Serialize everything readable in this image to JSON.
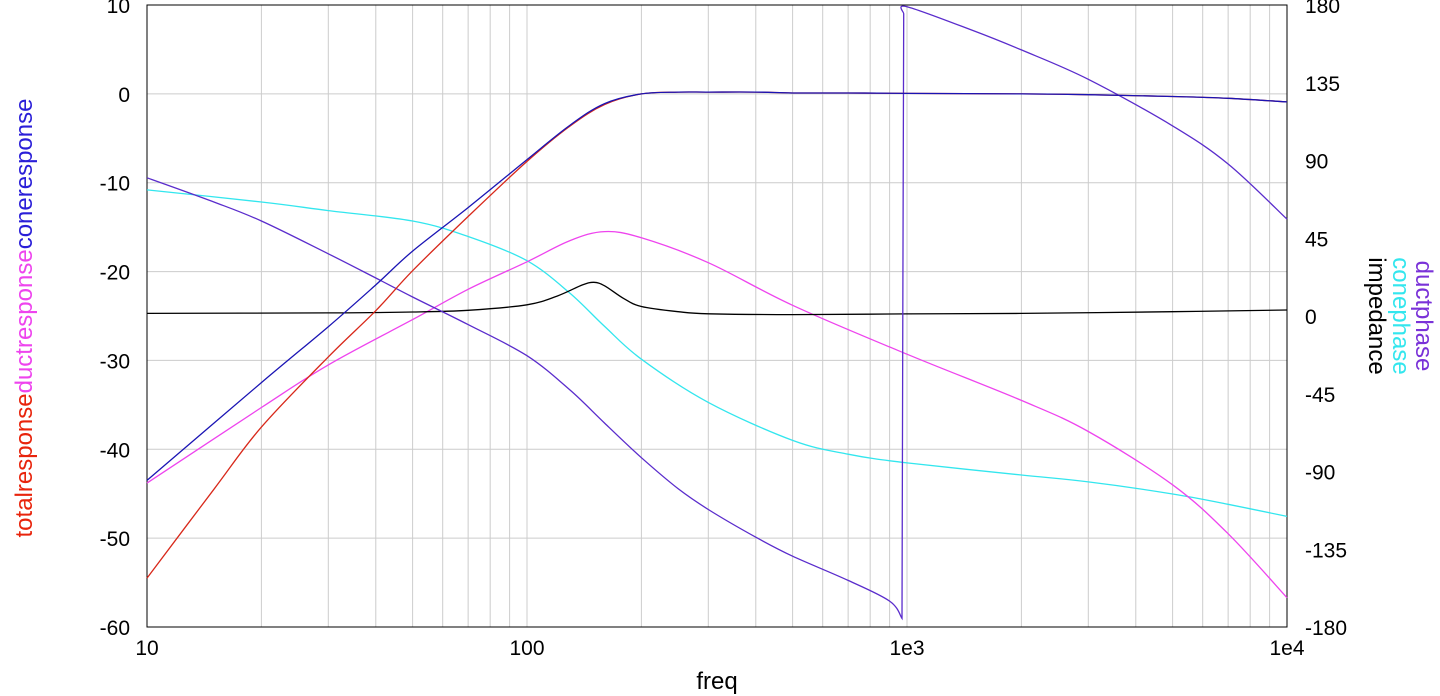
{
  "chart_data": {
    "type": "line",
    "x_scale": "log",
    "xlabel": "freq",
    "xlim": [
      10,
      10000
    ],
    "x_ticks": [
      {
        "value": 10,
        "label": "10"
      },
      {
        "value": 100,
        "label": "100"
      },
      {
        "value": 1000,
        "label": "1e3"
      },
      {
        "value": 10000,
        "label": "1e4"
      }
    ],
    "grid": true,
    "y_left": {
      "ylim": [
        -60,
        10
      ],
      "ticks": [
        {
          "value": 10,
          "label": "10"
        },
        {
          "value": 0,
          "label": "0"
        },
        {
          "value": -10,
          "label": "-10"
        },
        {
          "value": -20,
          "label": "-20"
        },
        {
          "value": -30,
          "label": "-30"
        },
        {
          "value": -40,
          "label": "-40"
        },
        {
          "value": -50,
          "label": "-50"
        },
        {
          "value": -60,
          "label": "-60"
        }
      ],
      "label_parts": [
        {
          "text": "totalresponse",
          "color": "#e8240c"
        },
        {
          "text": "ductresponse",
          "color": "#ee44ee"
        },
        {
          "text": "coneresponse",
          "color": "#2a1ed8"
        }
      ]
    },
    "y_right": {
      "ylim": [
        -180,
        180
      ],
      "ticks": [
        {
          "value": 180,
          "label": "180"
        },
        {
          "value": 135,
          "label": "135"
        },
        {
          "value": 90,
          "label": "90"
        },
        {
          "value": 45,
          "label": "45"
        },
        {
          "value": 0,
          "label": "0"
        },
        {
          "value": -45,
          "label": "-45"
        },
        {
          "value": -90,
          "label": "-90"
        },
        {
          "value": -135,
          "label": "-135"
        },
        {
          "value": -180,
          "label": "-180"
        }
      ],
      "label_lines": [
        {
          "text": "ductphase",
          "color": "#7a32d8"
        },
        {
          "text": "conephase",
          "color": "#33e6ee"
        },
        {
          "text": "impedance",
          "color": "#000000"
        }
      ]
    },
    "series": [
      {
        "name": "totalresponse",
        "axis": "left",
        "color": "#d8281a",
        "x": [
          10,
          15,
          20,
          30,
          40,
          50,
          70,
          100,
          130,
          160,
          200,
          250,
          300,
          400,
          500,
          700,
          1000,
          2000,
          3000,
          5000,
          7000,
          10000
        ],
        "y": [
          -54.5,
          -44.5,
          -37.5,
          -29.6,
          -24.4,
          -19.9,
          -13.8,
          -7.6,
          -3.6,
          -1.2,
          0,
          0.2,
          0.2,
          0.2,
          0.1,
          0.1,
          0.05,
          0,
          -0.1,
          -0.3,
          -0.5,
          -0.9
        ]
      },
      {
        "name": "ductresponse",
        "axis": "left",
        "color": "#ee44ee",
        "x": [
          10,
          20,
          30,
          50,
          70,
          100,
          130,
          160,
          200,
          300,
          500,
          1000,
          2000,
          3000,
          5000,
          7000,
          10000
        ],
        "y": [
          -43.8,
          -35.3,
          -30.5,
          -25.4,
          -22,
          -18.9,
          -16.5,
          -15.5,
          -16.2,
          -19,
          -23.8,
          -29.3,
          -34.5,
          -38,
          -44,
          -49.5,
          -56.7
        ]
      },
      {
        "name": "coneresponse",
        "axis": "left",
        "color": "#1a14b4",
        "x": [
          10,
          20,
          30,
          40,
          50,
          70,
          100,
          130,
          160,
          200,
          250,
          300,
          400,
          500,
          700,
          1000,
          2000,
          3000,
          5000,
          7000,
          10000
        ],
        "y": [
          -43.5,
          -32.5,
          -26.2,
          -21.5,
          -17.7,
          -12.8,
          -7.4,
          -3.5,
          -1.1,
          0,
          0.2,
          0.2,
          0.2,
          0.1,
          0.1,
          0.05,
          0,
          -0.1,
          -0.3,
          -0.5,
          -0.9
        ]
      },
      {
        "name": "conephase",
        "axis": "right",
        "color": "#33e6ee",
        "x": [
          10,
          20,
          30,
          50,
          70,
          100,
          130,
          160,
          200,
          300,
          500,
          700,
          1000,
          2000,
          3000,
          5000,
          7000,
          10000
        ],
        "y": [
          73,
          66,
          61,
          55,
          46,
          32,
          13,
          -6,
          -25,
          -50,
          -72,
          -80,
          -85,
          -92,
          -96,
          -103,
          -109,
          -116
        ]
      },
      {
        "name": "ductphase",
        "axis": "right",
        "color": "#5a2ccc",
        "x": [
          10,
          15,
          20,
          30,
          40,
          50,
          70,
          100,
          130,
          160,
          200,
          250,
          300,
          400,
          500,
          700,
          900,
          970,
          975,
          980,
          1000,
          1500,
          2000,
          3000,
          5000,
          7000,
          10000
        ],
        "y": [
          80,
          66,
          55,
          36,
          22,
          11,
          -5,
          -23,
          -43,
          -62,
          -82,
          -100,
          -112,
          -128,
          -139,
          -153,
          -165,
          -175,
          0,
          175,
          179,
          165,
          154,
          137,
          110,
          88,
          56
        ]
      },
      {
        "name": "impedance",
        "axis": "right",
        "color": "#000000",
        "x": [
          10,
          30,
          50,
          70,
          100,
          120,
          140,
          150,
          160,
          180,
          200,
          250,
          300,
          500,
          1000,
          2000,
          5000,
          10000
        ],
        "y": [
          1.5,
          1.8,
          2.3,
          3.3,
          6.5,
          11.5,
          18,
          19.5,
          17.5,
          10,
          5.5,
          2.5,
          1.3,
          0.8,
          1.2,
          1.5,
          2.5,
          3.5
        ]
      }
    ]
  }
}
